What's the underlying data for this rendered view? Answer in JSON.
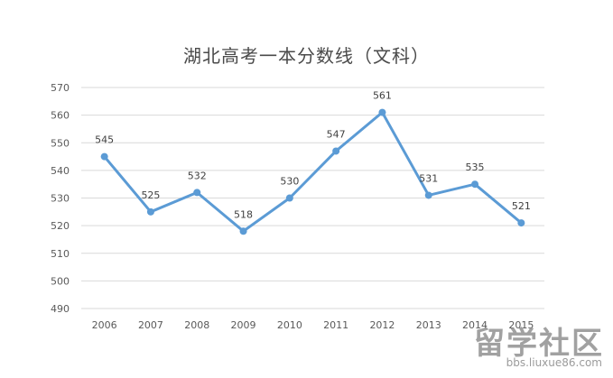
{
  "chart_data": {
    "type": "line",
    "title": "湖北高考一本分数线（文科）",
    "xlabel": "",
    "ylabel": "",
    "categories": [
      "2006",
      "2007",
      "2008",
      "2009",
      "2010",
      "2011",
      "2012",
      "2013",
      "2014",
      "2015"
    ],
    "series": [
      {
        "name": "",
        "values": [
          545,
          525,
          532,
          518,
          530,
          547,
          561,
          531,
          535,
          521
        ]
      }
    ],
    "ylim": [
      490,
      570
    ],
    "yticks": [
      490,
      500,
      510,
      520,
      530,
      540,
      550,
      560,
      570
    ],
    "grid": true,
    "legend": "none",
    "data_labels": true
  },
  "colors": {
    "line": "#5b9bd5",
    "grid": "#d9d9d9",
    "tick_text": "#595959",
    "title_text": "#4a4a4a"
  },
  "watermark": {
    "main": "留学社区",
    "sub": "bbs.liuxue86.com"
  }
}
